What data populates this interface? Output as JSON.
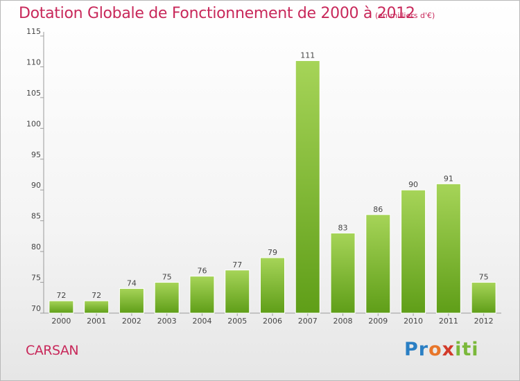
{
  "header": {
    "title": "Dotation Globale de Fonctionnement de 2000 à 2012",
    "subtitle": "(en milliers d'€)"
  },
  "footer": {
    "commune": "CARSAN",
    "logo_text": "Proxiti"
  },
  "colors": {
    "accent": "#c8285a",
    "bar_top": "#a6d458",
    "bar_bottom": "#5f9e18"
  },
  "chart_data": {
    "type": "bar",
    "categories": [
      "2000",
      "2001",
      "2002",
      "2003",
      "2004",
      "2005",
      "2006",
      "2007",
      "2008",
      "2009",
      "2010",
      "2011",
      "2012"
    ],
    "values": [
      72,
      72,
      74,
      75,
      76,
      77,
      79,
      111,
      83,
      86,
      90,
      91,
      75
    ],
    "ylim": [
      70,
      115
    ],
    "yticks": [
      70,
      75,
      80,
      85,
      90,
      95,
      100,
      105,
      110,
      115
    ],
    "grid": false,
    "legend": "none"
  }
}
